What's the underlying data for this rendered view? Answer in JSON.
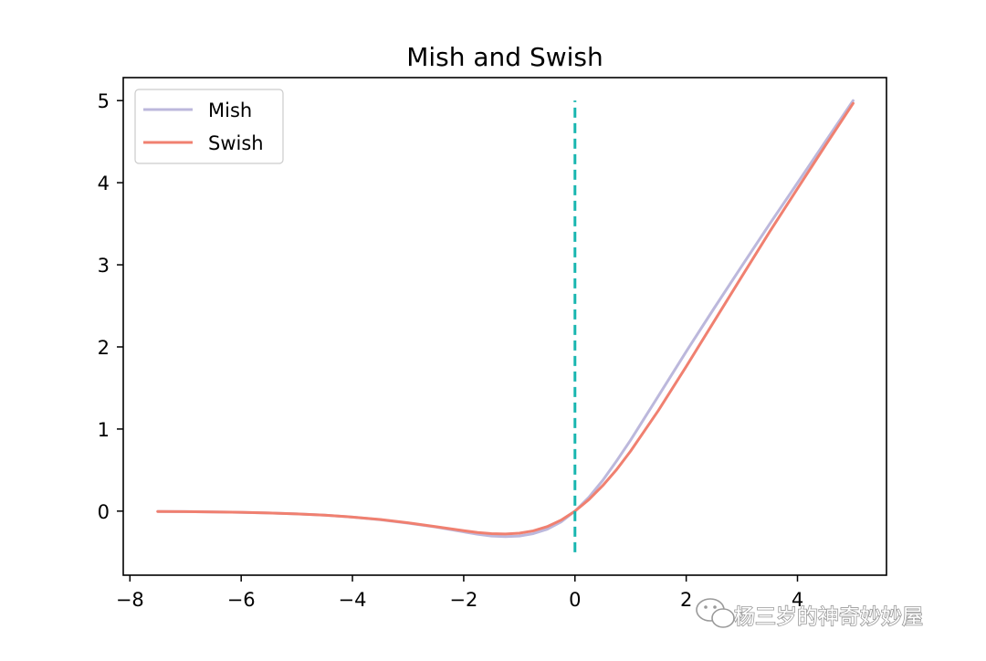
{
  "chart_data": {
    "type": "line",
    "title": "Mish and Swish",
    "xlabel": "",
    "ylabel": "",
    "xlim": [
      -8.12,
      5.6
    ],
    "ylim": [
      -0.78,
      5.28
    ],
    "xticks": [
      -8,
      -6,
      -4,
      -2,
      0,
      2,
      4
    ],
    "xtick_labels": [
      "−8",
      "−6",
      "−4",
      "−2",
      "0",
      "2",
      "4"
    ],
    "yticks": [
      0,
      1,
      2,
      3,
      4,
      5
    ],
    "ytick_labels": [
      "0",
      "1",
      "2",
      "3",
      "4",
      "5"
    ],
    "grid": false,
    "legend_position": "upper-left",
    "series": [
      {
        "name": "Mish",
        "color": "#bcb8dc",
        "x": [
          -7.5,
          -7.0,
          -6.5,
          -6.0,
          -5.5,
          -5.0,
          -4.5,
          -4.0,
          -3.5,
          -3.0,
          -2.5,
          -2.0,
          -1.75,
          -1.5,
          -1.25,
          -1.0,
          -0.75,
          -0.5,
          -0.25,
          0.0,
          0.25,
          0.5,
          0.75,
          1.0,
          1.5,
          2.0,
          2.5,
          3.0,
          3.5,
          4.0,
          4.5,
          5.0
        ],
        "y": [
          -0.0041,
          -0.0064,
          -0.0098,
          -0.0149,
          -0.0224,
          -0.0336,
          -0.0495,
          -0.0726,
          -0.1045,
          -0.1456,
          -0.1939,
          -0.2525,
          -0.2813,
          -0.3034,
          -0.3099,
          -0.3034,
          -0.2738,
          -0.2207,
          -0.1316,
          0.0,
          0.168,
          0.3751,
          0.6133,
          0.8651,
          1.4034,
          1.944,
          2.4696,
          2.9865,
          3.4973,
          3.9974,
          4.499,
          4.9996
        ]
      },
      {
        "name": "Swish",
        "color": "#f08070",
        "x": [
          -7.5,
          -7.0,
          -6.5,
          -6.0,
          -5.5,
          -5.0,
          -4.5,
          -4.0,
          -3.5,
          -3.0,
          -2.5,
          -2.0,
          -1.75,
          -1.5,
          -1.25,
          -1.0,
          -0.75,
          -0.5,
          -0.25,
          0.0,
          0.25,
          0.5,
          0.75,
          1.0,
          1.5,
          2.0,
          2.5,
          3.0,
          3.5,
          4.0,
          4.5,
          5.0
        ],
        "y": [
          -0.0041,
          -0.0064,
          -0.0098,
          -0.0148,
          -0.0223,
          -0.0335,
          -0.0494,
          -0.0719,
          -0.1023,
          -0.1423,
          -0.1897,
          -0.2384,
          -0.2596,
          -0.2736,
          -0.2785,
          -0.2689,
          -0.2401,
          -0.1888,
          -0.1095,
          0.0,
          0.1406,
          0.3112,
          0.5075,
          0.7311,
          1.2264,
          1.7616,
          2.3103,
          2.8577,
          3.4029,
          3.9281,
          4.4505,
          4.9665
        ]
      }
    ],
    "annotations": [
      {
        "kind": "vertical-dashed-line",
        "x": 0,
        "y_range": [
          -0.5,
          5.0
        ],
        "color": "#19b6b0"
      }
    ]
  },
  "watermark": {
    "text": "杨三岁的神奇妙妙屋",
    "icon": "wechat-icon"
  }
}
